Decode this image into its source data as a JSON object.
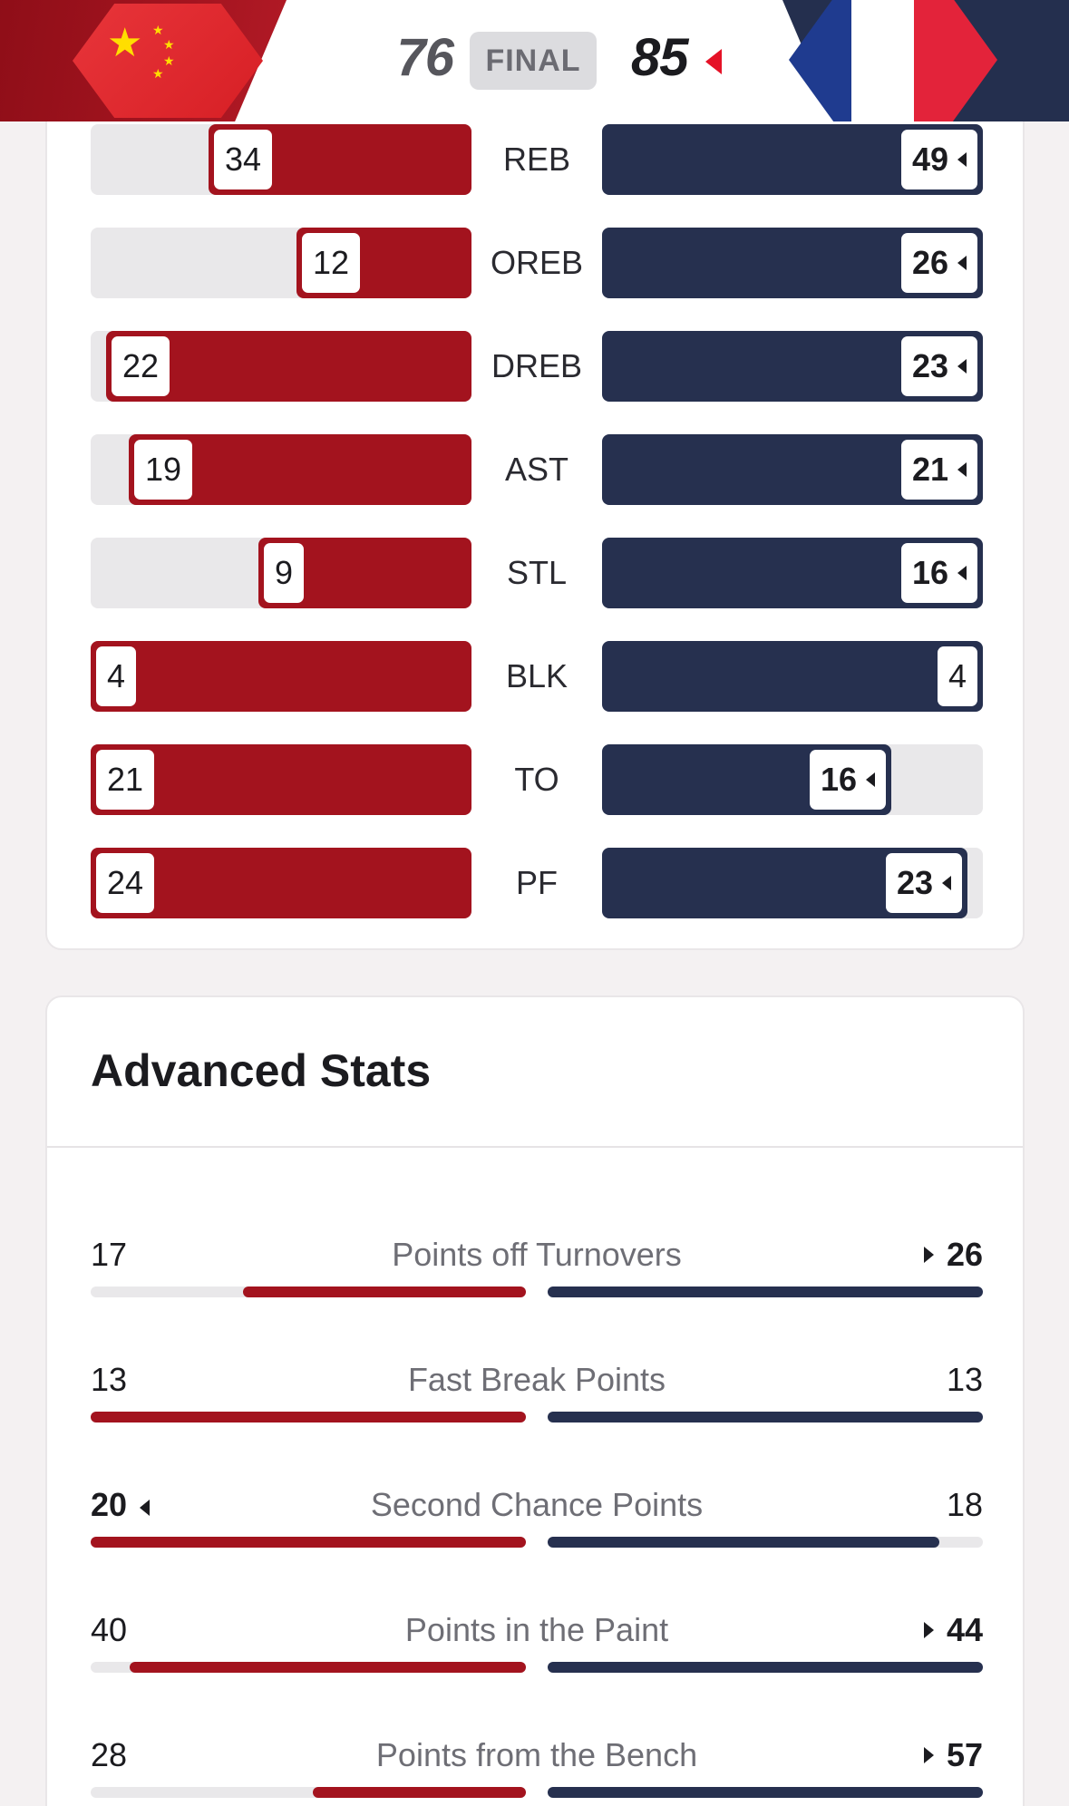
{
  "header": {
    "home_score": "76",
    "status": "FINAL",
    "away_score": "85",
    "home_flag_icon": "china-flag-icon",
    "away_flag_icon": "france-flag-icon",
    "winner_indicator_color": "#e51227"
  },
  "colors": {
    "home": "#a3131e",
    "away": "#26304f",
    "track": "#e9e8ea"
  },
  "team_stats": [
    {
      "label": "REB",
      "home": "34",
      "away": "49",
      "home_frac": 0.69,
      "away_frac": 1.0,
      "leader": "away"
    },
    {
      "label": "OREB",
      "home": "12",
      "away": "26",
      "home_frac": 0.46,
      "away_frac": 1.0,
      "leader": "away"
    },
    {
      "label": "DREB",
      "home": "22",
      "away": "23",
      "home_frac": 0.96,
      "away_frac": 1.0,
      "leader": "away"
    },
    {
      "label": "AST",
      "home": "19",
      "away": "21",
      "home_frac": 0.9,
      "away_frac": 1.0,
      "leader": "away"
    },
    {
      "label": "STL",
      "home": "9",
      "away": "16",
      "home_frac": 0.56,
      "away_frac": 1.0,
      "leader": "away"
    },
    {
      "label": "BLK",
      "home": "4",
      "away": "4",
      "home_frac": 1.0,
      "away_frac": 1.0,
      "leader": "none"
    },
    {
      "label": "TO",
      "home": "21",
      "away": "16",
      "home_frac": 1.0,
      "away_frac": 0.76,
      "leader": "away"
    },
    {
      "label": "PF",
      "home": "24",
      "away": "23",
      "home_frac": 1.0,
      "away_frac": 0.96,
      "leader": "away"
    }
  ],
  "advanced": {
    "title": "Advanced Stats",
    "rows": [
      {
        "label": "Points off Turnovers",
        "home": "17",
        "away": "26",
        "home_frac": 0.65,
        "away_frac": 1.0,
        "leader": "away"
      },
      {
        "label": "Fast Break Points",
        "home": "13",
        "away": "13",
        "home_frac": 1.0,
        "away_frac": 1.0,
        "leader": "none"
      },
      {
        "label": "Second Chance Points",
        "home": "20",
        "away": "18",
        "home_frac": 1.0,
        "away_frac": 0.9,
        "leader": "home"
      },
      {
        "label": "Points in the Paint",
        "home": "40",
        "away": "44",
        "home_frac": 0.91,
        "away_frac": 1.0,
        "leader": "away"
      },
      {
        "label": "Points from the Bench",
        "home": "28",
        "away": "57",
        "home_frac": 0.49,
        "away_frac": 1.0,
        "leader": "away"
      }
    ]
  }
}
